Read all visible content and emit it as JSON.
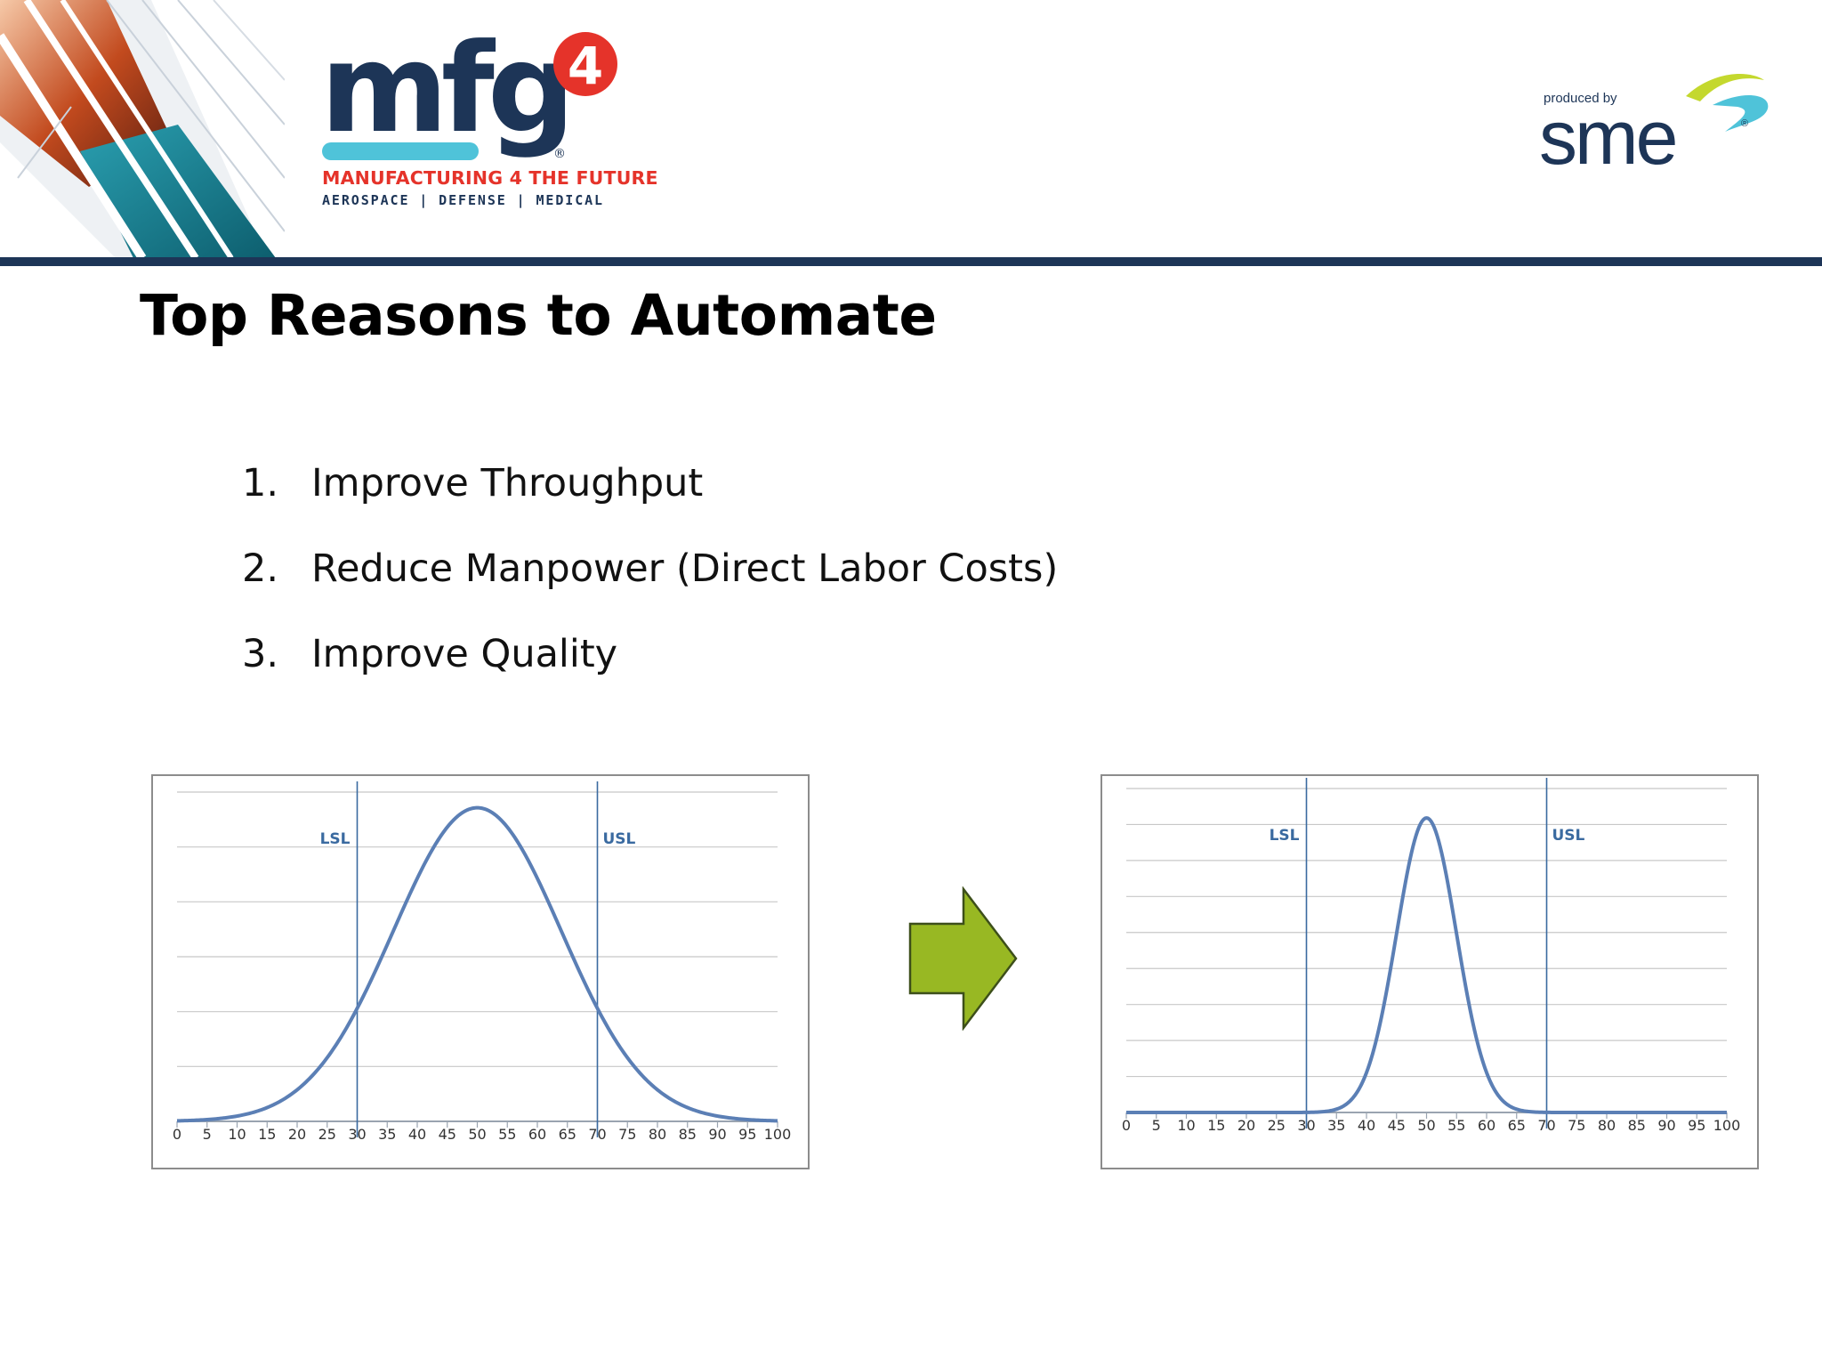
{
  "header": {
    "event_logo": {
      "wordmark": "mfg",
      "superscript": "4",
      "registered_mark": "®",
      "tagline": "MANUFACTURING 4 THE FUTURE",
      "sectors": "AEROSPACE | DEFENSE | MEDICAL"
    },
    "producer_logo": {
      "produced_by": "produced by",
      "wordmark": "sme",
      "registered_mark": "®"
    }
  },
  "slide": {
    "title": "Top Reasons to Automate",
    "reasons": [
      {
        "number": "1.",
        "text": "Improve Throughput"
      },
      {
        "number": "2.",
        "text": "Reduce Manpower (Direct Labor Costs)"
      },
      {
        "number": "3.",
        "text": "Improve Quality"
      }
    ]
  },
  "colors": {
    "navy": "#1d3557",
    "accent_red": "#e5332a",
    "accent_cyan": "#4fc3d9",
    "accent_lime": "#c4d82e",
    "curve_blue": "#5b7fb5",
    "spec_line_blue": "#3a6aa0",
    "arrow_green": "#98b823"
  },
  "arrow": {
    "icon": "right-arrow-icon"
  },
  "chart_data": [
    {
      "type": "line",
      "title": "",
      "xlabel": "",
      "ylabel": "",
      "xlim": [
        0,
        100
      ],
      "x_ticks": [
        0,
        5,
        10,
        15,
        20,
        25,
        30,
        35,
        40,
        45,
        50,
        55,
        60,
        65,
        70,
        75,
        80,
        85,
        90,
        95,
        100
      ],
      "ylim": [
        0,
        1.05
      ],
      "gridlines": 6,
      "grid": true,
      "spec_limits": [
        {
          "label": "LSL",
          "x": 30
        },
        {
          "label": "USL",
          "x": 70
        }
      ],
      "series": [
        {
          "distribution": "normal",
          "mean": 50,
          "stdev": 14,
          "peak": 1.0
        }
      ]
    },
    {
      "type": "line",
      "title": "",
      "xlabel": "",
      "ylabel": "",
      "xlim": [
        0,
        100
      ],
      "x_ticks": [
        0,
        5,
        10,
        15,
        20,
        25,
        30,
        35,
        40,
        45,
        50,
        55,
        60,
        65,
        70,
        75,
        80,
        85,
        90,
        95,
        100
      ],
      "ylim": [
        0,
        1.1
      ],
      "gridlines": 9,
      "grid": true,
      "spec_limits": [
        {
          "label": "LSL",
          "x": 30
        },
        {
          "label": "USL",
          "x": 70
        }
      ],
      "series": [
        {
          "distribution": "normal",
          "mean": 50,
          "stdev": 5,
          "peak": 1.0
        }
      ]
    }
  ]
}
